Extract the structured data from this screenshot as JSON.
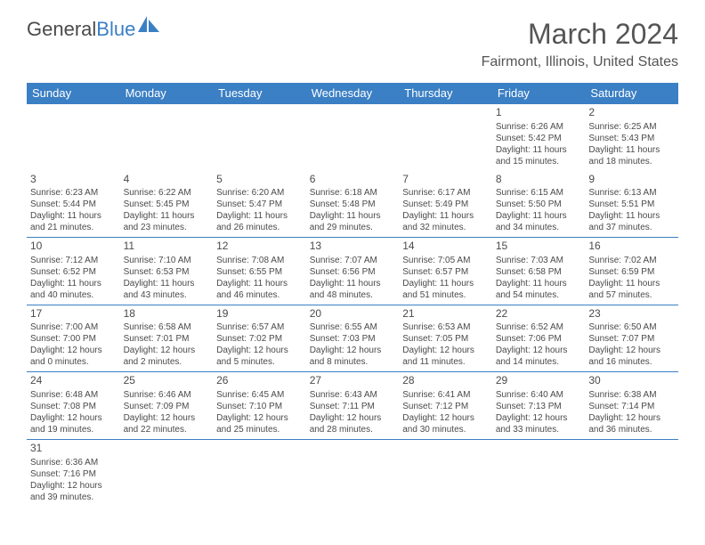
{
  "logo": {
    "part1": "General",
    "part2": "Blue"
  },
  "title": "March 2024",
  "location": "Fairmont, Illinois, United States",
  "colors": {
    "header_bg": "#3b7fc4",
    "header_text": "#ffffff",
    "text": "#4a4a4a",
    "border": "#3b7fc4",
    "background": "#ffffff"
  },
  "weekdays": [
    "Sunday",
    "Monday",
    "Tuesday",
    "Wednesday",
    "Thursday",
    "Friday",
    "Saturday"
  ],
  "layout": {
    "first_weekday_index": 5,
    "days_in_month": 31
  },
  "days": [
    {
      "d": 1,
      "sunrise": "6:26 AM",
      "sunset": "5:42 PM",
      "dl_h": 11,
      "dl_m": 15
    },
    {
      "d": 2,
      "sunrise": "6:25 AM",
      "sunset": "5:43 PM",
      "dl_h": 11,
      "dl_m": 18
    },
    {
      "d": 3,
      "sunrise": "6:23 AM",
      "sunset": "5:44 PM",
      "dl_h": 11,
      "dl_m": 21
    },
    {
      "d": 4,
      "sunrise": "6:22 AM",
      "sunset": "5:45 PM",
      "dl_h": 11,
      "dl_m": 23
    },
    {
      "d": 5,
      "sunrise": "6:20 AM",
      "sunset": "5:47 PM",
      "dl_h": 11,
      "dl_m": 26
    },
    {
      "d": 6,
      "sunrise": "6:18 AM",
      "sunset": "5:48 PM",
      "dl_h": 11,
      "dl_m": 29
    },
    {
      "d": 7,
      "sunrise": "6:17 AM",
      "sunset": "5:49 PM",
      "dl_h": 11,
      "dl_m": 32
    },
    {
      "d": 8,
      "sunrise": "6:15 AM",
      "sunset": "5:50 PM",
      "dl_h": 11,
      "dl_m": 34
    },
    {
      "d": 9,
      "sunrise": "6:13 AM",
      "sunset": "5:51 PM",
      "dl_h": 11,
      "dl_m": 37
    },
    {
      "d": 10,
      "sunrise": "7:12 AM",
      "sunset": "6:52 PM",
      "dl_h": 11,
      "dl_m": 40
    },
    {
      "d": 11,
      "sunrise": "7:10 AM",
      "sunset": "6:53 PM",
      "dl_h": 11,
      "dl_m": 43
    },
    {
      "d": 12,
      "sunrise": "7:08 AM",
      "sunset": "6:55 PM",
      "dl_h": 11,
      "dl_m": 46
    },
    {
      "d": 13,
      "sunrise": "7:07 AM",
      "sunset": "6:56 PM",
      "dl_h": 11,
      "dl_m": 48
    },
    {
      "d": 14,
      "sunrise": "7:05 AM",
      "sunset": "6:57 PM",
      "dl_h": 11,
      "dl_m": 51
    },
    {
      "d": 15,
      "sunrise": "7:03 AM",
      "sunset": "6:58 PM",
      "dl_h": 11,
      "dl_m": 54
    },
    {
      "d": 16,
      "sunrise": "7:02 AM",
      "sunset": "6:59 PM",
      "dl_h": 11,
      "dl_m": 57
    },
    {
      "d": 17,
      "sunrise": "7:00 AM",
      "sunset": "7:00 PM",
      "dl_h": 12,
      "dl_m": 0
    },
    {
      "d": 18,
      "sunrise": "6:58 AM",
      "sunset": "7:01 PM",
      "dl_h": 12,
      "dl_m": 2
    },
    {
      "d": 19,
      "sunrise": "6:57 AM",
      "sunset": "7:02 PM",
      "dl_h": 12,
      "dl_m": 5
    },
    {
      "d": 20,
      "sunrise": "6:55 AM",
      "sunset": "7:03 PM",
      "dl_h": 12,
      "dl_m": 8
    },
    {
      "d": 21,
      "sunrise": "6:53 AM",
      "sunset": "7:05 PM",
      "dl_h": 12,
      "dl_m": 11
    },
    {
      "d": 22,
      "sunrise": "6:52 AM",
      "sunset": "7:06 PM",
      "dl_h": 12,
      "dl_m": 14
    },
    {
      "d": 23,
      "sunrise": "6:50 AM",
      "sunset": "7:07 PM",
      "dl_h": 12,
      "dl_m": 16
    },
    {
      "d": 24,
      "sunrise": "6:48 AM",
      "sunset": "7:08 PM",
      "dl_h": 12,
      "dl_m": 19
    },
    {
      "d": 25,
      "sunrise": "6:46 AM",
      "sunset": "7:09 PM",
      "dl_h": 12,
      "dl_m": 22
    },
    {
      "d": 26,
      "sunrise": "6:45 AM",
      "sunset": "7:10 PM",
      "dl_h": 12,
      "dl_m": 25
    },
    {
      "d": 27,
      "sunrise": "6:43 AM",
      "sunset": "7:11 PM",
      "dl_h": 12,
      "dl_m": 28
    },
    {
      "d": 28,
      "sunrise": "6:41 AM",
      "sunset": "7:12 PM",
      "dl_h": 12,
      "dl_m": 30
    },
    {
      "d": 29,
      "sunrise": "6:40 AM",
      "sunset": "7:13 PM",
      "dl_h": 12,
      "dl_m": 33
    },
    {
      "d": 30,
      "sunrise": "6:38 AM",
      "sunset": "7:14 PM",
      "dl_h": 12,
      "dl_m": 36
    },
    {
      "d": 31,
      "sunrise": "6:36 AM",
      "sunset": "7:16 PM",
      "dl_h": 12,
      "dl_m": 39
    }
  ]
}
